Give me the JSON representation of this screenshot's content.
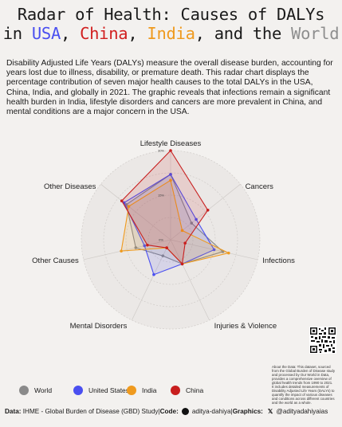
{
  "title": {
    "line1": "Radar of Health: Causes of DALYs",
    "in": "in ",
    "usa": "USA",
    "sep1": ", ",
    "china": "China",
    "sep2": ", ",
    "india": "India",
    "and_the": ", and the ",
    "world": "World"
  },
  "description": "Disability Adjusted Life Years (DALYs) measure the overall disease burden, accounting for years lost due to illness, disability, or premature death. This radar chart displays the percentage contribution of seven major health causes to the total DALYs in the USA, China, India, and globally in 2021. The graphic reveals that infections remain a significant health burden in India, lifestyle disorders and cancers are more prevalent in China, and mental conditions are a major concern in the USA.",
  "chart_data": {
    "type": "radar",
    "categories": [
      "Lifestyle Diseases",
      "Cancers",
      "Infections",
      "Injuries & Violence",
      "Mental Disorders",
      "Other Causes",
      "Other Diseases"
    ],
    "tick_labels": [
      "0%",
      "15%",
      "30%"
    ],
    "rmax": 30,
    "series": [
      {
        "name": "World",
        "color": "#8a8a8a",
        "values": [
          22,
          9,
          18,
          9,
          6,
          12,
          19
        ]
      },
      {
        "name": "United States",
        "color": "#4a4ff0",
        "values": [
          22,
          11,
          15,
          9,
          13,
          9,
          20
        ]
      },
      {
        "name": "India",
        "color": "#ef9a1e",
        "values": [
          20,
          5,
          20,
          9,
          3,
          17,
          18
        ]
      },
      {
        "name": "China",
        "color": "#c81e1e",
        "values": [
          30,
          16,
          5,
          9,
          3,
          8,
          21
        ]
      }
    ],
    "grid": true
  },
  "about": "About the Data: This dataset, sourced from the Global Burden of Disease study and processed by Our World in Data, provides a comprehensive overview of global health trends from 1990 to 2021. It includes detailed measurements of Disability Adjusted Life Years (DALYs) to quantify the impact of various diseases and conditions across different countries and the world as a whole.",
  "footer": {
    "data_label": "Data:",
    "data_text": "IHME - Global Burden of Disease (GBD) Study",
    "code_label": "Code:",
    "code_handle": "aditya-dahiya",
    "graphics_label": "Graphics:",
    "x_glyph": "𝕏",
    "graphics_handle": "@adityadahiyaias",
    "sep": " | "
  }
}
